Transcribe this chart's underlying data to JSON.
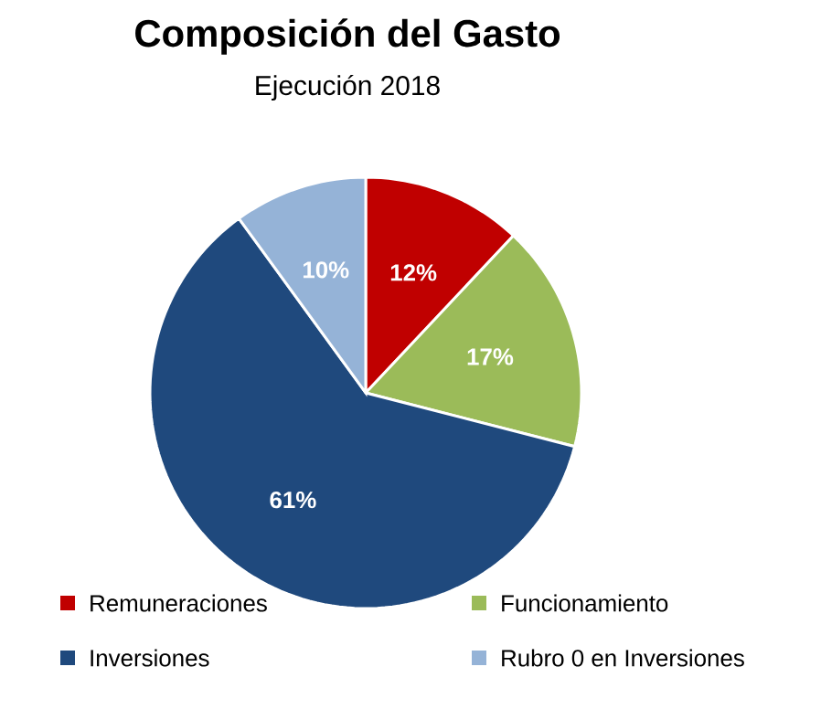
{
  "chart_data": {
    "type": "pie",
    "title": "Composición del Gasto",
    "subtitle": "Ejecución 2018",
    "categories": [
      "Remuneraciones",
      "Funcionamiento",
      "Inversiones",
      "Rubro 0 en Inversiones"
    ],
    "values": [
      12,
      17,
      61,
      10
    ],
    "value_labels": [
      "12%",
      "17%",
      "61%",
      "10%"
    ],
    "colors": [
      "#c00000",
      "#9bbb59",
      "#1f497d",
      "#95b3d7"
    ],
    "legend": "bottom"
  }
}
